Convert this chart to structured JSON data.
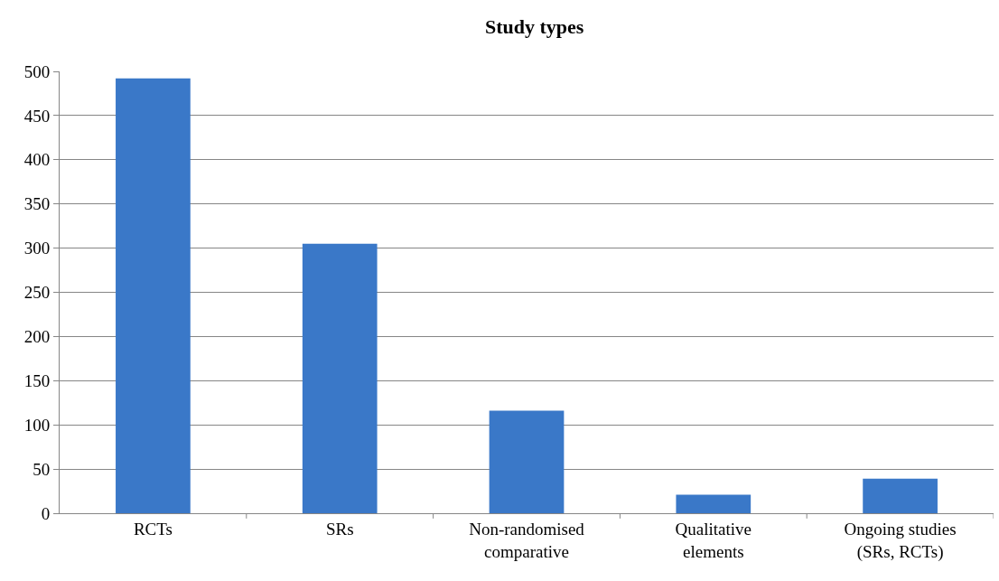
{
  "chart_data": {
    "type": "bar",
    "title": "Study types",
    "categories": [
      "RCTs",
      "SRs",
      "Non-randomised comparative",
      "Qualitative elements",
      "Ongoing studies (SRs, RCTs)"
    ],
    "values": [
      492,
      305,
      116,
      21,
      39
    ],
    "color": "#3a78c8",
    "ylim": [
      0,
      500
    ],
    "yticks": [
      0,
      50,
      100,
      150,
      200,
      250,
      300,
      350,
      400,
      450,
      500
    ],
    "grid": "y"
  }
}
